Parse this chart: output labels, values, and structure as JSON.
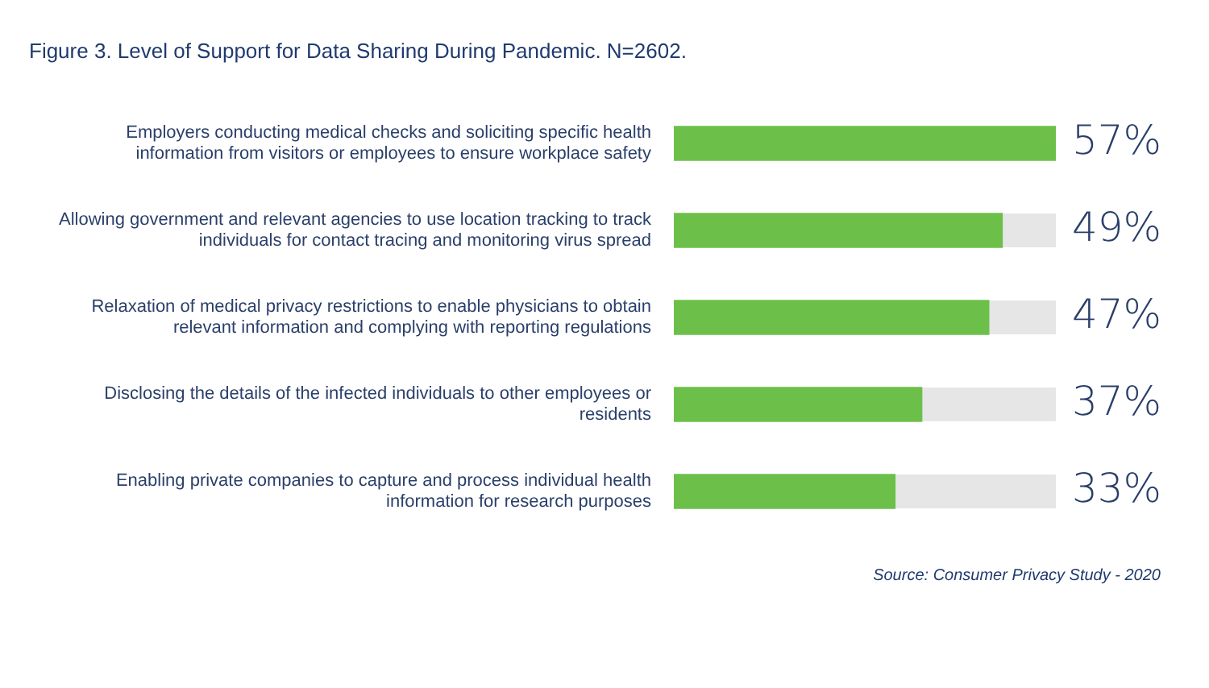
{
  "chart_data": {
    "type": "bar",
    "orientation": "horizontal",
    "title": "Figure 3.   Level of Support for Data Sharing During Pandemic. N=2602.",
    "categories": [
      "Employers conducting medical checks and soliciting specific health information from visitors or employees to ensure workplace safety",
      "Allowing government and relevant agencies to use location tracking to track individuals for contact tracing and monitoring virus spread",
      "Relaxation of medical privacy restrictions to enable physicians to obtain relevant information and complying with reporting regulations",
      "Disclosing the details of the infected individuals to other employees or residents",
      "Enabling private companies to capture and process individual health information for research purposes"
    ],
    "values": [
      57,
      49,
      47,
      37,
      33
    ],
    "color": "#6cc04a",
    "value_labels": [
      "57%",
      "49%",
      "47%",
      "37%",
      "33%"
    ],
    "xlim": [
      0,
      57
    ],
    "legend": false,
    "tick_labels": "y",
    "annotations": [
      "Source: Consumer Privacy Study - 2020"
    ]
  }
}
